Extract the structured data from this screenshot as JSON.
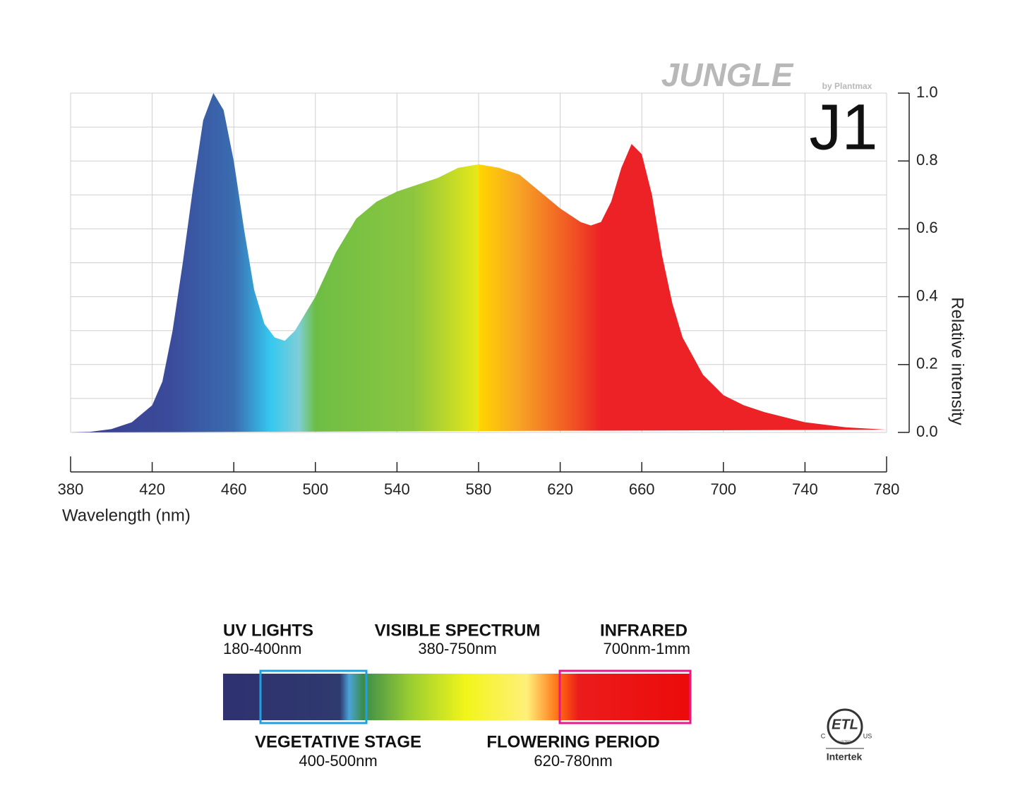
{
  "chart_data": {
    "type": "area",
    "brand": "JUNGLE",
    "byline": "by Plantmax",
    "model": "J1",
    "x_label": "Wavelength (nm)",
    "y_label": "Relative intensity",
    "x": [
      380,
      390,
      400,
      410,
      420,
      425,
      430,
      435,
      440,
      445,
      450,
      455,
      460,
      465,
      470,
      475,
      480,
      485,
      490,
      495,
      500,
      510,
      520,
      530,
      540,
      550,
      560,
      570,
      580,
      590,
      600,
      610,
      620,
      630,
      635,
      640,
      645,
      650,
      655,
      660,
      665,
      670,
      675,
      680,
      690,
      700,
      710,
      720,
      740,
      760,
      780
    ],
    "values": [
      0,
      0.002,
      0.01,
      0.03,
      0.08,
      0.15,
      0.3,
      0.5,
      0.72,
      0.92,
      1.0,
      0.95,
      0.8,
      0.6,
      0.42,
      0.32,
      0.28,
      0.27,
      0.3,
      0.35,
      0.4,
      0.53,
      0.63,
      0.68,
      0.71,
      0.73,
      0.75,
      0.78,
      0.79,
      0.78,
      0.76,
      0.71,
      0.66,
      0.62,
      0.61,
      0.62,
      0.68,
      0.78,
      0.85,
      0.82,
      0.7,
      0.52,
      0.38,
      0.28,
      0.17,
      0.11,
      0.08,
      0.06,
      0.03,
      0.015,
      0.008
    ],
    "xlim": [
      380,
      780
    ],
    "ylim": [
      0,
      1
    ],
    "xticks": [
      380,
      420,
      460,
      500,
      540,
      580,
      620,
      660,
      700,
      740,
      780
    ],
    "yticks": [
      {
        "value": 0,
        "label": "0.0"
      },
      0.2,
      0.4,
      0.6,
      0.8,
      {
        "value": 1,
        "label": "1.0"
      }
    ],
    "minor_yticks": [
      0.1,
      0.3,
      0.5,
      0.7,
      0.9
    ],
    "grid": true,
    "y_axis_side": "right"
  },
  "spectrum_legend": {
    "top": [
      {
        "title": "UV LIGHTS",
        "range": "180-400nm"
      },
      {
        "title": "VISIBLE SPECTRUM",
        "range": "380-750nm"
      },
      {
        "title": "INFRARED",
        "range": "700nm-1mm"
      }
    ],
    "bottom": [
      {
        "title": "VEGETATIVE STAGE",
        "range": "400-500nm"
      },
      {
        "title": "FLOWERING PERIOD",
        "range": "620-780nm"
      }
    ]
  },
  "certification": {
    "mark": "ETL",
    "left": "C",
    "right": "US",
    "listed": "LISTED",
    "company": "Intertek"
  }
}
